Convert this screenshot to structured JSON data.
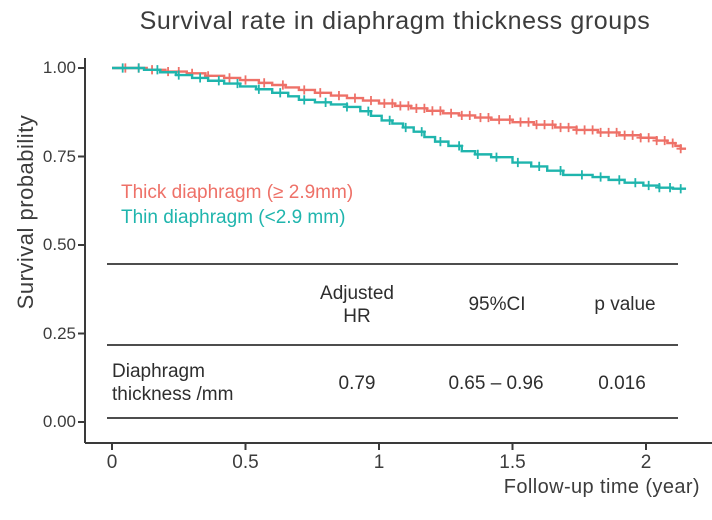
{
  "title": "Survival rate in diaphragm thickness groups",
  "axes": {
    "x_label": "Follow-up time (year)",
    "y_label": "Survival probability",
    "x_ticks": [
      0,
      0.5,
      1,
      1.5,
      2
    ],
    "x_tick_labels": [
      "0",
      "0.5",
      "1",
      "1.5",
      "2"
    ],
    "y_ticks": [
      1.0,
      0.75,
      0.5,
      0.25,
      0.0
    ],
    "y_tick_labels": [
      "1.00",
      "0.75",
      "0.50",
      "0.25",
      "0.00"
    ],
    "axis_color": "#3a3a3a"
  },
  "legend": [
    {
      "label": "Thick diaphragm (≥ 2.9mm)",
      "color": "#ee7168"
    },
    {
      "label": "Thin diaphragm (<2.9 mm)",
      "color": "#1fb5ad"
    }
  ],
  "chart_data": {
    "type": "line",
    "subtype": "kaplan-meier-step",
    "title": "Survival rate in diaphragm thickness groups",
    "xlabel": "Follow-up time (year)",
    "ylabel": "Survival probability",
    "xlim": [
      0,
      2.15
    ],
    "ylim": [
      0,
      1.0
    ],
    "grid": false,
    "legend_position": "inside-left",
    "series": [
      {
        "key": "thick",
        "name": "Thick diaphragm (≥ 2.9mm)",
        "color": "#ee7168",
        "points": [
          [
            0,
            1.0
          ],
          [
            0.13,
            0.995
          ],
          [
            0.2,
            0.99
          ],
          [
            0.28,
            0.985
          ],
          [
            0.35,
            0.978
          ],
          [
            0.42,
            0.972
          ],
          [
            0.48,
            0.966
          ],
          [
            0.55,
            0.958
          ],
          [
            0.6,
            0.952
          ],
          [
            0.65,
            0.945
          ],
          [
            0.7,
            0.938
          ],
          [
            0.76,
            0.93
          ],
          [
            0.82,
            0.922
          ],
          [
            0.88,
            0.915
          ],
          [
            0.94,
            0.908
          ],
          [
            1.0,
            0.9
          ],
          [
            1.06,
            0.893
          ],
          [
            1.12,
            0.886
          ],
          [
            1.18,
            0.879
          ],
          [
            1.24,
            0.872
          ],
          [
            1.3,
            0.866
          ],
          [
            1.36,
            0.86
          ],
          [
            1.42,
            0.854
          ],
          [
            1.5,
            0.847
          ],
          [
            1.58,
            0.84
          ],
          [
            1.66,
            0.832
          ],
          [
            1.74,
            0.825
          ],
          [
            1.82,
            0.818
          ],
          [
            1.9,
            0.81
          ],
          [
            1.98,
            0.803
          ],
          [
            2.04,
            0.795
          ],
          [
            2.08,
            0.788
          ],
          [
            2.11,
            0.78
          ],
          [
            2.13,
            0.772
          ],
          [
            2.15,
            0.772
          ]
        ],
        "censor_times": [
          0.05,
          0.1,
          0.15,
          0.21,
          0.25,
          0.3,
          0.36,
          0.44,
          0.5,
          0.57,
          0.64,
          0.72,
          0.78,
          0.85,
          0.91,
          0.97,
          1.02,
          1.05,
          1.08,
          1.11,
          1.14,
          1.17,
          1.2,
          1.23,
          1.27,
          1.31,
          1.34,
          1.38,
          1.41,
          1.45,
          1.49,
          1.53,
          1.56,
          1.59,
          1.62,
          1.65,
          1.68,
          1.71,
          1.74,
          1.77,
          1.8,
          1.83,
          1.86,
          1.89,
          1.92,
          1.95,
          1.98,
          2.01,
          2.04,
          2.07,
          2.1,
          2.13
        ]
      },
      {
        "key": "thin",
        "name": "Thin diaphragm (<2.9 mm)",
        "color": "#1fb5ad",
        "points": [
          [
            0,
            1.0
          ],
          [
            0.12,
            0.995
          ],
          [
            0.18,
            0.988
          ],
          [
            0.24,
            0.98
          ],
          [
            0.3,
            0.972
          ],
          [
            0.36,
            0.964
          ],
          [
            0.42,
            0.956
          ],
          [
            0.48,
            0.948
          ],
          [
            0.54,
            0.94
          ],
          [
            0.6,
            0.93
          ],
          [
            0.66,
            0.92
          ],
          [
            0.7,
            0.91
          ],
          [
            0.76,
            0.903
          ],
          [
            0.82,
            0.897
          ],
          [
            0.88,
            0.89
          ],
          [
            0.93,
            0.878
          ],
          [
            0.97,
            0.865
          ],
          [
            1.01,
            0.852
          ],
          [
            1.05,
            0.843
          ],
          [
            1.09,
            0.832
          ],
          [
            1.13,
            0.82
          ],
          [
            1.17,
            0.805
          ],
          [
            1.21,
            0.792
          ],
          [
            1.26,
            0.78
          ],
          [
            1.31,
            0.765
          ],
          [
            1.36,
            0.756
          ],
          [
            1.42,
            0.748
          ],
          [
            1.5,
            0.733
          ],
          [
            1.57,
            0.722
          ],
          [
            1.63,
            0.71
          ],
          [
            1.69,
            0.698
          ],
          [
            1.8,
            0.692
          ],
          [
            1.86,
            0.684
          ],
          [
            1.92,
            0.676
          ],
          [
            1.99,
            0.668
          ],
          [
            2.05,
            0.662
          ],
          [
            2.1,
            0.659
          ],
          [
            2.15,
            0.659
          ]
        ],
        "censor_times": [
          0.04,
          0.1,
          0.17,
          0.25,
          0.33,
          0.4,
          0.47,
          0.55,
          0.63,
          0.72,
          0.8,
          0.88,
          0.96,
          1.04,
          1.1,
          1.16,
          1.23,
          1.3,
          1.37,
          1.44,
          1.52,
          1.6,
          1.68,
          1.76,
          1.83,
          1.9,
          1.96,
          2.01,
          2.05,
          2.09,
          2.13
        ]
      }
    ]
  },
  "table": {
    "col_headers": [
      "Adjusted\nHR",
      "95%CI",
      "p value"
    ],
    "row_label": "Diaphragm\nthickness /mm",
    "values": [
      "0.79",
      "0.65 – 0.96",
      "0.016"
    ]
  }
}
